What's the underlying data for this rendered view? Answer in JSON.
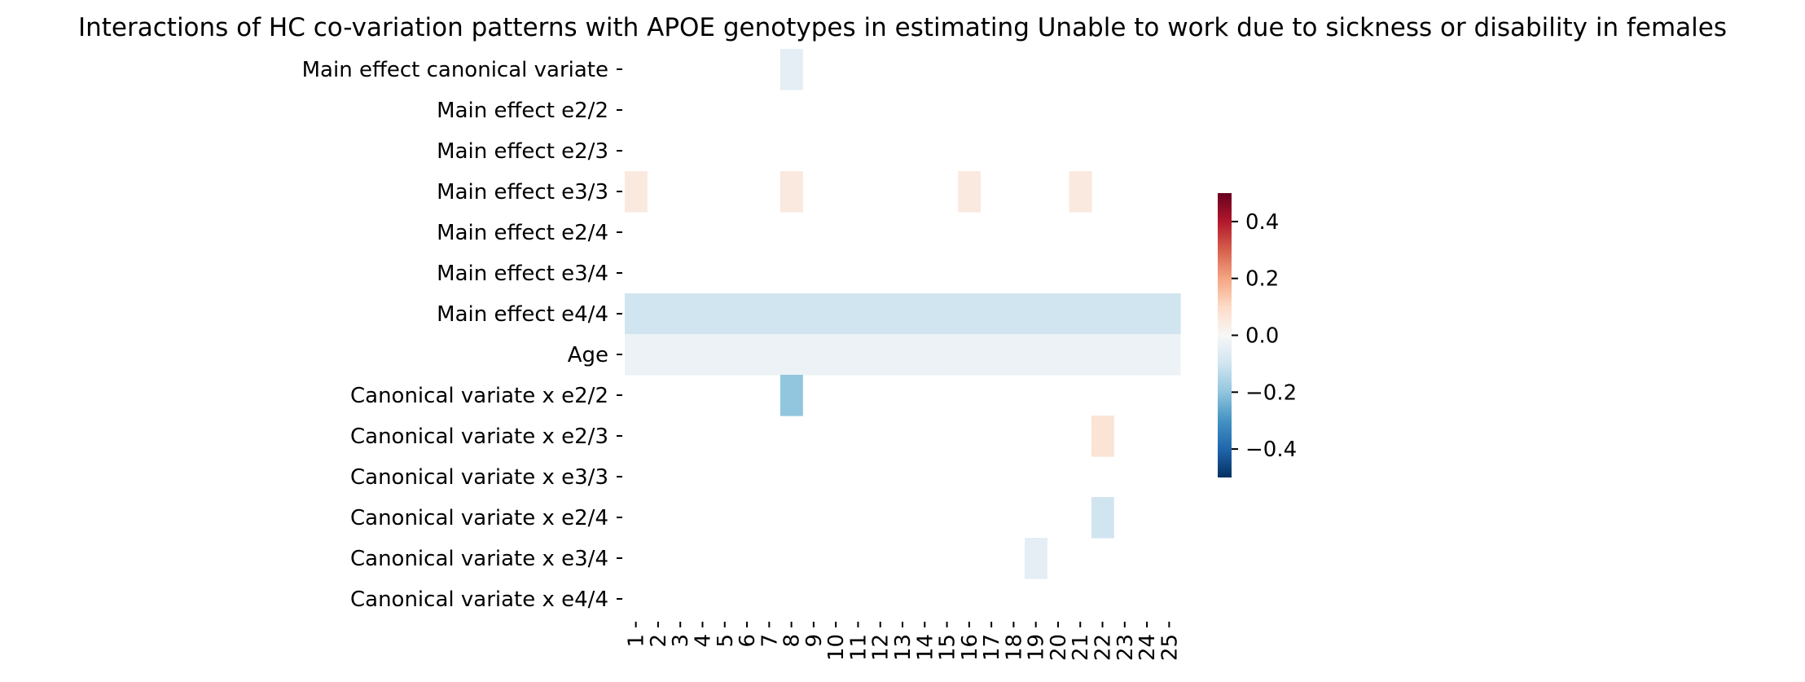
{
  "chart_data": {
    "type": "heatmap",
    "title": "Interactions of HC co-variation patterns with APOE genotypes in estimating Unable to work due to sickness or disability in females",
    "xlabel": "",
    "ylabel": "",
    "columns": [
      "1",
      "2",
      "3",
      "4",
      "5",
      "6",
      "7",
      "8",
      "9",
      "10",
      "11",
      "12",
      "13",
      "14",
      "15",
      "16",
      "17",
      "18",
      "19",
      "20",
      "21",
      "22",
      "23",
      "24",
      "25"
    ],
    "rows": [
      "Main effect canonical variate",
      "Main effect e2/2",
      "Main effect e2/3",
      "Main effect e3/3",
      "Main effect e2/4",
      "Main effect e3/4",
      "Main effect e4/4",
      "Age",
      "Canonical variate x e2/2",
      "Canonical variate x e2/3",
      "Canonical variate x e3/3",
      "Canonical variate x e2/4",
      "Canonical variate x e3/4",
      "Canonical variate x e4/4"
    ],
    "values": [
      [
        null,
        null,
        null,
        null,
        null,
        null,
        null,
        -0.05,
        null,
        null,
        null,
        null,
        null,
        null,
        null,
        null,
        null,
        null,
        null,
        null,
        null,
        null,
        null,
        null,
        null
      ],
      [
        null,
        null,
        null,
        null,
        null,
        null,
        null,
        null,
        null,
        null,
        null,
        null,
        null,
        null,
        null,
        null,
        null,
        null,
        null,
        null,
        null,
        null,
        null,
        null,
        null
      ],
      [
        null,
        null,
        null,
        null,
        null,
        null,
        null,
        null,
        null,
        null,
        null,
        null,
        null,
        null,
        null,
        null,
        null,
        null,
        null,
        null,
        null,
        null,
        null,
        null,
        null
      ],
      [
        0.05,
        null,
        null,
        null,
        null,
        null,
        null,
        0.05,
        null,
        null,
        null,
        null,
        null,
        null,
        null,
        0.05,
        null,
        null,
        null,
        null,
        0.05,
        null,
        null,
        null,
        null
      ],
      [
        null,
        null,
        null,
        null,
        null,
        null,
        null,
        null,
        null,
        null,
        null,
        null,
        null,
        null,
        null,
        null,
        null,
        null,
        null,
        null,
        null,
        null,
        null,
        null,
        null
      ],
      [
        null,
        null,
        null,
        null,
        null,
        null,
        null,
        null,
        null,
        null,
        null,
        null,
        null,
        null,
        null,
        null,
        null,
        null,
        null,
        null,
        null,
        null,
        null,
        null,
        null
      ],
      [
        -0.1,
        -0.1,
        -0.1,
        -0.1,
        -0.1,
        -0.1,
        -0.1,
        -0.1,
        -0.1,
        -0.1,
        -0.1,
        -0.1,
        -0.1,
        -0.1,
        -0.1,
        -0.1,
        -0.1,
        -0.1,
        -0.1,
        -0.1,
        -0.1,
        -0.1,
        -0.1,
        -0.1,
        -0.1
      ],
      [
        -0.03,
        -0.03,
        -0.03,
        -0.03,
        -0.03,
        -0.03,
        -0.03,
        -0.03,
        -0.03,
        -0.03,
        -0.03,
        -0.03,
        -0.03,
        -0.03,
        -0.03,
        -0.03,
        -0.03,
        -0.03,
        -0.03,
        -0.03,
        -0.03,
        -0.03,
        -0.03,
        -0.03,
        -0.03
      ],
      [
        null,
        null,
        null,
        null,
        null,
        null,
        null,
        -0.2,
        null,
        null,
        null,
        null,
        null,
        null,
        null,
        null,
        null,
        null,
        null,
        null,
        null,
        null,
        null,
        null,
        null
      ],
      [
        null,
        null,
        null,
        null,
        null,
        null,
        null,
        null,
        null,
        null,
        null,
        null,
        null,
        null,
        null,
        null,
        null,
        null,
        null,
        null,
        null,
        0.07,
        null,
        null,
        null
      ],
      [
        null,
        null,
        null,
        null,
        null,
        null,
        null,
        null,
        null,
        null,
        null,
        null,
        null,
        null,
        null,
        null,
        null,
        null,
        null,
        null,
        null,
        null,
        null,
        null,
        null
      ],
      [
        null,
        null,
        null,
        null,
        null,
        null,
        null,
        null,
        null,
        null,
        null,
        null,
        null,
        null,
        null,
        null,
        null,
        null,
        null,
        null,
        null,
        -0.1,
        null,
        null,
        null
      ],
      [
        null,
        null,
        null,
        null,
        null,
        null,
        null,
        null,
        null,
        null,
        null,
        null,
        null,
        null,
        null,
        null,
        null,
        null,
        -0.05,
        null,
        null,
        null,
        null,
        null,
        null
      ],
      [
        null,
        null,
        null,
        null,
        null,
        null,
        null,
        null,
        null,
        null,
        null,
        null,
        null,
        null,
        null,
        null,
        null,
        null,
        null,
        null,
        null,
        null,
        null,
        null,
        null
      ]
    ],
    "colorbar": {
      "min": -0.5,
      "max": 0.5,
      "ticks": [
        0.4,
        0.2,
        0.0,
        -0.2,
        -0.4
      ],
      "tick_labels": [
        "0.4",
        "0.2",
        "0.0",
        "−0.2",
        "−0.4"
      ],
      "colormap": "RdBu_r"
    },
    "colors": {
      "colormap_stops": [
        "#053061",
        "#2166ac",
        "#4393c3",
        "#92c5de",
        "#d1e5f0",
        "#f7f7f7",
        "#fddbc7",
        "#f4a582",
        "#d6604d",
        "#b2182b",
        "#67001f"
      ]
    }
  }
}
